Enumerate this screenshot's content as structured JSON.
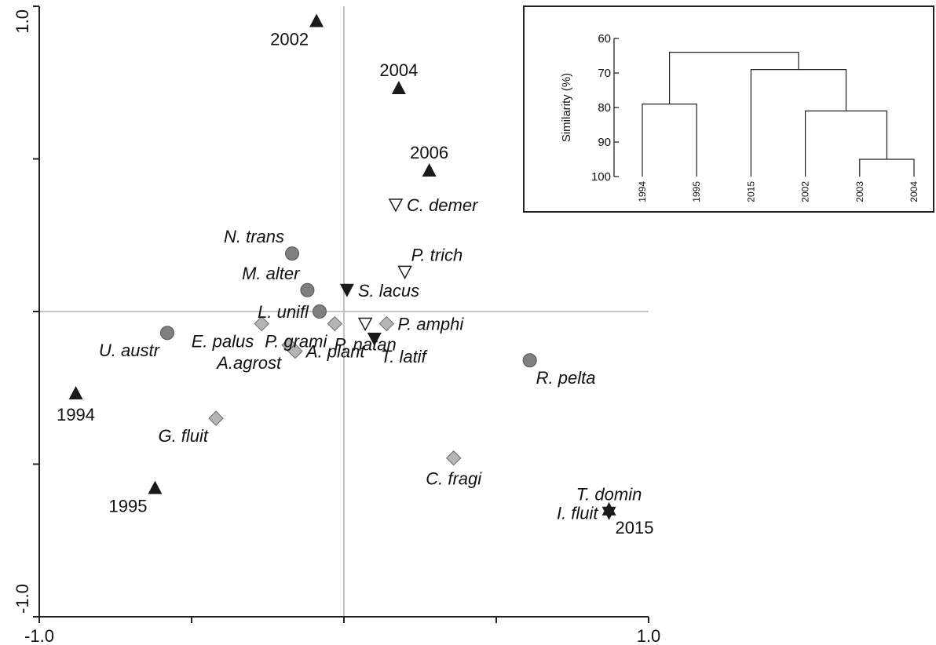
{
  "colors": {
    "axis": "#222222",
    "grid": "#b0b0b0",
    "year_marker": "#1a1a1a",
    "species_circle_fill": "#7f7f7f",
    "species_diamond_fill": "#b5b5b5",
    "open_triangle_fill": "#ffffff"
  },
  "chart_data": [
    {
      "type": "scatter",
      "title": "",
      "xlabel": "",
      "ylabel": "",
      "xlim": [
        -1.0,
        1.0
      ],
      "ylim": [
        -1.0,
        1.0
      ],
      "x_tick_labels": [
        "-1.0",
        "1.0"
      ],
      "y_tick_labels": [
        "1.0",
        "-1.0"
      ],
      "reference_lines": [
        0,
        0
      ],
      "points": [
        {
          "label": "2002",
          "x": -0.09,
          "y": 0.95,
          "marker": "triangle-up",
          "group": "year",
          "label_pos": "below-left"
        },
        {
          "label": "2004",
          "x": 0.18,
          "y": 0.73,
          "marker": "triangle-up",
          "group": "year",
          "label_pos": "above"
        },
        {
          "label": "2006",
          "x": 0.28,
          "y": 0.46,
          "marker": "triangle-up",
          "group": "year",
          "label_pos": "above"
        },
        {
          "label": "1994",
          "x": -0.88,
          "y": -0.27,
          "marker": "triangle-up",
          "group": "year",
          "label_pos": "below"
        },
        {
          "label": "1995",
          "x": -0.62,
          "y": -0.58,
          "marker": "triangle-up",
          "group": "year",
          "label_pos": "below-left"
        },
        {
          "label": "2015",
          "x": 0.87,
          "y": -0.65,
          "marker": "triangle-up",
          "group": "year",
          "label_pos": "below-right"
        },
        {
          "label": "C. demer",
          "x": 0.17,
          "y": 0.35,
          "marker": "triangle-down-open",
          "group": "species",
          "label_pos": "right"
        },
        {
          "label": "P. trich",
          "x": 0.2,
          "y": 0.13,
          "marker": "triangle-down-open",
          "group": "species",
          "label_pos": "above-right"
        },
        {
          "label": "S. lacus",
          "x": 0.01,
          "y": 0.07,
          "marker": "triangle-down",
          "group": "species",
          "label_pos": "right"
        },
        {
          "label": "T. latif",
          "x": 0.1,
          "y": -0.09,
          "marker": "triangle-down",
          "group": "species",
          "label_pos": "below-right"
        },
        {
          "label": "N. trans",
          "x": -0.17,
          "y": 0.19,
          "marker": "circle",
          "group": "species",
          "label_pos": "above-left"
        },
        {
          "label": "M. alter",
          "x": -0.12,
          "y": 0.07,
          "marker": "circle",
          "group": "species",
          "label_pos": "above-left"
        },
        {
          "label": "L. unifl",
          "x": -0.08,
          "y": 0.0,
          "marker": "circle",
          "group": "species",
          "label_pos": "left"
        },
        {
          "label": "U. austr",
          "x": -0.58,
          "y": -0.07,
          "marker": "circle",
          "group": "species",
          "label_pos": "below-left"
        },
        {
          "label": "R. pelta",
          "x": 0.61,
          "y": -0.16,
          "marker": "circle",
          "group": "species",
          "label_pos": "below-right"
        },
        {
          "label": "P. amphi",
          "x": 0.14,
          "y": -0.04,
          "marker": "diamond",
          "group": "species",
          "label_pos": "right"
        },
        {
          "label": "E. palus",
          "x": -0.27,
          "y": -0.04,
          "marker": "diamond",
          "group": "species",
          "label_pos": "below-left"
        },
        {
          "label": "A.agrost",
          "x": -0.18,
          "y": -0.11,
          "marker": "diamond",
          "group": "species",
          "label_pos": "below-left"
        },
        {
          "label": "A. plant",
          "x": -0.16,
          "y": -0.13,
          "marker": "diamond",
          "group": "species",
          "label_pos": "right"
        },
        {
          "label": "P. grami",
          "x": -0.03,
          "y": -0.04,
          "marker": "diamond",
          "group": "species",
          "label_pos": "below-left"
        },
        {
          "label": "P. natan",
          "x": 0.07,
          "y": -0.04,
          "marker": "triangle-down-open",
          "group": "species",
          "label_pos": "below"
        },
        {
          "label": "G. fluit",
          "x": -0.42,
          "y": -0.35,
          "marker": "diamond",
          "group": "species",
          "label_pos": "below-left"
        },
        {
          "label": "C. fragi",
          "x": 0.36,
          "y": -0.48,
          "marker": "diamond",
          "group": "species",
          "label_pos": "below"
        },
        {
          "label": "T. domin",
          "x": 0.87,
          "y": -0.66,
          "marker": "triangle-down",
          "group": "species",
          "label_pos": "above"
        },
        {
          "label": "I. fluit",
          "x": 0.87,
          "y": -0.66,
          "marker": "none",
          "group": "species",
          "label_pos": "left"
        }
      ]
    },
    {
      "type": "dendrogram",
      "title": "",
      "ylabel": "Similarity (%)",
      "ylim": [
        60,
        100
      ],
      "y_ticks": [
        60,
        70,
        80,
        90,
        100
      ],
      "leaves": [
        "1994",
        "1995",
        "2015",
        "2002",
        "2003",
        "2004"
      ],
      "merges": [
        {
          "left": "2003",
          "right": "2004",
          "similarity": 95
        },
        {
          "left": "2002",
          "right": "2003,2004",
          "similarity": 81
        },
        {
          "left": "2015",
          "right": "2002,2003,2004",
          "similarity": 69
        },
        {
          "left": "1994",
          "right": "1995",
          "similarity": 79
        },
        {
          "left": "1994,1995",
          "right": "2015,2002,2003,2004",
          "similarity": 64
        }
      ]
    }
  ]
}
